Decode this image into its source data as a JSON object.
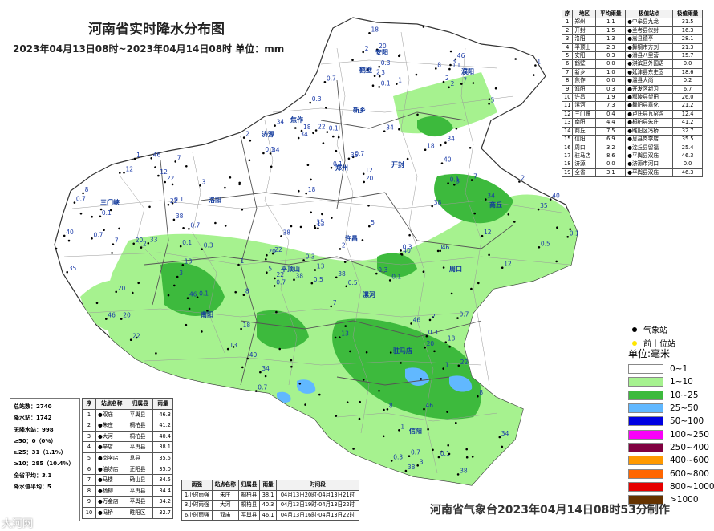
{
  "title": "河南省实时降水分布图",
  "subtitle": "2023年04月13日08时~2023年04月14日08时 单位：mm",
  "top_table": {
    "headers": [
      "序",
      "地区",
      "平均雨量",
      "极值站点",
      "极值雨量"
    ],
    "rows": [
      [
        "1",
        "郑州",
        "1.1",
        "●中牟县九龙",
        "31.5"
      ],
      [
        "2",
        "开封",
        "1.5",
        "●兰考县仪封",
        "16.3"
      ],
      [
        "3",
        "洛阳",
        "1.3",
        "●嵩县德亭",
        "28.1"
      ],
      [
        "4",
        "平顶山",
        "2.3",
        "●舞钢市方刘",
        "21.3"
      ],
      [
        "5",
        "安阳",
        "0.3",
        "●滑县八里营",
        "15.7"
      ],
      [
        "6",
        "鹤壁",
        "0.0",
        "●淇滨区外国语",
        "0.0"
      ],
      [
        "7",
        "新乡",
        "1.0",
        "●延津县东史固",
        "18.6"
      ],
      [
        "8",
        "焦作",
        "0.0",
        "●温县大尚",
        "0.2"
      ],
      [
        "9",
        "濮阳",
        "0.3",
        "●开发区新习",
        "6.7"
      ],
      [
        "10",
        "许昌",
        "1.9",
        "●鄢陵县望田",
        "26.0"
      ],
      [
        "11",
        "漯河",
        "7.3",
        "●舞阳县章化",
        "21.2"
      ],
      [
        "12",
        "三门峡",
        "0.4",
        "●卢氏县瓦窑沟",
        "12.4"
      ],
      [
        "13",
        "南阳",
        "4.4",
        "●桐柏县朱庄",
        "41.2"
      ],
      [
        "14",
        "商丘",
        "7.5",
        "●睢阳区冯桥",
        "32.7"
      ],
      [
        "15",
        "信阳",
        "6.9",
        "●息县岗李店",
        "35.5"
      ],
      [
        "16",
        "周口",
        "3.2",
        "●沈丘县留福",
        "25.4"
      ],
      [
        "17",
        "驻马店",
        "8.6",
        "●平舆县双庙",
        "46.3"
      ],
      [
        "18",
        "济源",
        "0.0",
        "●济源市河口",
        "0.0"
      ],
      [
        "19",
        "全省",
        "3.1",
        "●平舆县双庙",
        "46.3"
      ]
    ]
  },
  "stats": {
    "total": "总站数：2740",
    "rain": "降水站：1742",
    "norain": "无降水站：998",
    "ge50": "≥50：0（0%）",
    "ge25": "≥25：31（1.1%）",
    "ge10": "≥10：285（10.4%）",
    "avg": "全省平均：3.1",
    "rain_avg": "降水值平均：5"
  },
  "station_table": {
    "headers": [
      "序",
      "站点名称",
      "归属县",
      "雨量"
    ],
    "rows": [
      [
        "1",
        "●双庙",
        "平舆县",
        "46.3"
      ],
      [
        "2",
        "●朱庄",
        "桐柏县",
        "41.2"
      ],
      [
        "3",
        "●大河",
        "桐柏县",
        "40.4"
      ],
      [
        "4",
        "●辛店",
        "平舆县",
        "38.1"
      ],
      [
        "5",
        "●岗李店",
        "息县",
        "35.5"
      ],
      [
        "6",
        "●油坊店",
        "正阳县",
        "35.0"
      ],
      [
        "7",
        "●马楼",
        "确山县",
        "34.5"
      ],
      [
        "8",
        "●杨柳",
        "平舆县",
        "34.4"
      ],
      [
        "9",
        "●万金店",
        "平舆县",
        "34.2"
      ],
      [
        "10",
        "●冯桥",
        "睢阳区",
        "32.7"
      ]
    ]
  },
  "period_table": {
    "headers": [
      "雨强",
      "站点名称",
      "归属县",
      "雨量",
      "时间段"
    ],
    "rows": [
      [
        "1小时雨强",
        "朱庄",
        "桐柏县",
        "38.1",
        "04月13日20时-04月13日21时"
      ],
      [
        "3小时雨强",
        "大河",
        "桐柏县",
        "40.3",
        "04月13日19时-04月13日22时"
      ],
      [
        "6小时雨强",
        "双庙",
        "平舆县",
        "46.1",
        "04月13日16时-04月13日22时"
      ]
    ]
  },
  "legend": {
    "station_label": "气象站",
    "top10_label": "前十位站",
    "unit": "单位:毫米",
    "station_color": "#000000",
    "top10_color": "#ffe600",
    "scale": [
      {
        "label": "0~1",
        "color": "#ffffff"
      },
      {
        "label": "1~10",
        "color": "#a6f28f"
      },
      {
        "label": "10~25",
        "color": "#3dba3d"
      },
      {
        "label": "25~50",
        "color": "#61b8ff"
      },
      {
        "label": "50~100",
        "color": "#0000e1"
      },
      {
        "label": "100~250",
        "color": "#fa00fa"
      },
      {
        "label": "250~400",
        "color": "#800040"
      },
      {
        "label": "400~600",
        "color": "#ff9900"
      },
      {
        "label": "600~800",
        "color": "#ff6600"
      },
      {
        "label": "800~1000",
        "color": "#e60000"
      },
      {
        "label": ">1000",
        "color": "#663300"
      }
    ]
  },
  "map": {
    "cities": [
      "安阳",
      "鹤壁",
      "新乡",
      "焦作",
      "濮阳",
      "济源",
      "郑州",
      "开封",
      "洛阳",
      "三门峡",
      "许昌",
      "平顶山",
      "漯河",
      "商丘",
      "周口",
      "南阳",
      "驻马店",
      "信阳"
    ],
    "values": [
      "0.1",
      "0.3",
      "0.5",
      "0.7",
      "1",
      "2",
      "3",
      "5",
      "7",
      "8",
      "12",
      "13",
      "18",
      "20",
      "22",
      "33",
      "34",
      "35",
      "38",
      "40",
      "46"
    ]
  },
  "footer": "河南省气象台2023年04月14日08时53分制作",
  "watermark": "大河网"
}
